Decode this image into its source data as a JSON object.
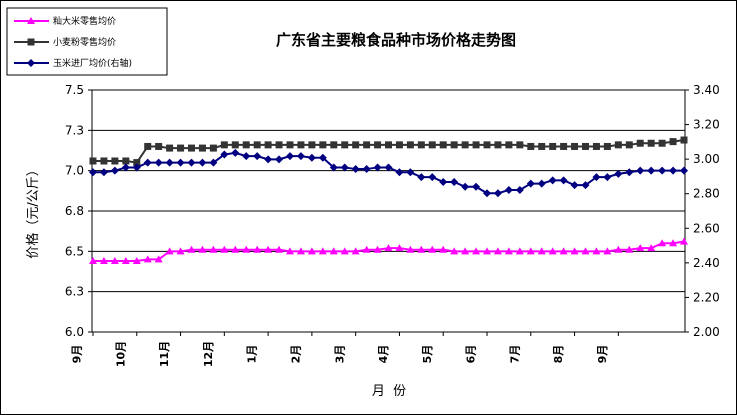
{
  "chart_data": {
    "type": "line",
    "title": "广东省主要粮食品种市场价格走势图",
    "xlabel": "月  份",
    "ylabel": "价格（元/公斤）",
    "ylim": [
      6.0,
      7.5
    ],
    "y_ticks": [
      "6.0",
      "6.3",
      "6.5",
      "6.8",
      "7.0",
      "7.3",
      "7.5"
    ],
    "y2lim": [
      2.0,
      3.5
    ],
    "y2_ticks": [
      "2.00",
      "2.20",
      "2.40",
      "2.60",
      "2.80",
      "3.00",
      "3.20",
      "3.40"
    ],
    "grid": "horizontal major (left axis)",
    "legend_position": "top-left",
    "month_labels": [
      "9月",
      "10月",
      "11月",
      "12月",
      "1月",
      "2月",
      "3月",
      "4月",
      "5月",
      "6月",
      "7月",
      "8月",
      "9月"
    ],
    "points_per_month": 4,
    "series": [
      {
        "name": "籼大米零售均价",
        "axis": "left",
        "color": "#ff00ff",
        "marker": "triangle",
        "values": [
          6.44,
          6.44,
          6.44,
          6.44,
          6.44,
          6.45,
          6.45,
          6.5,
          6.5,
          6.51,
          6.51,
          6.51,
          6.51,
          6.51,
          6.51,
          6.51,
          6.51,
          6.51,
          6.5,
          6.5,
          6.5,
          6.5,
          6.5,
          6.5,
          6.5,
          6.51,
          6.51,
          6.52,
          6.52,
          6.51,
          6.51,
          6.51,
          6.51,
          6.5,
          6.5,
          6.5,
          6.5,
          6.5,
          6.5,
          6.5,
          6.5,
          6.5,
          6.5,
          6.5,
          6.5,
          6.5,
          6.5,
          6.5,
          6.51,
          6.51,
          6.52,
          6.52,
          6.55,
          6.55,
          6.56
        ]
      },
      {
        "name": "小麦粉零售均价",
        "axis": "left",
        "color": "#333333",
        "marker": "square",
        "values": [
          7.06,
          7.06,
          7.06,
          7.06,
          7.05,
          7.15,
          7.15,
          7.14,
          7.14,
          7.14,
          7.14,
          7.14,
          7.16,
          7.16,
          7.16,
          7.16,
          7.16,
          7.16,
          7.16,
          7.16,
          7.16,
          7.16,
          7.16,
          7.16,
          7.16,
          7.16,
          7.16,
          7.16,
          7.16,
          7.16,
          7.16,
          7.16,
          7.16,
          7.16,
          7.16,
          7.16,
          7.16,
          7.16,
          7.16,
          7.16,
          7.15,
          7.15,
          7.15,
          7.15,
          7.15,
          7.15,
          7.15,
          7.15,
          7.16,
          7.16,
          7.17,
          7.17,
          7.17,
          7.18,
          7.19
        ]
      },
      {
        "name": "玉米进厂均价(右轴)",
        "axis": "right",
        "color": "#000080",
        "marker": "diamond",
        "values": [
          2.99,
          2.99,
          3.0,
          3.02,
          3.02,
          3.05,
          3.05,
          3.05,
          3.05,
          3.05,
          3.05,
          3.05,
          3.1,
          3.11,
          3.09,
          3.09,
          3.07,
          3.07,
          3.09,
          3.09,
          3.08,
          3.08,
          3.02,
          3.02,
          3.01,
          3.01,
          3.02,
          3.02,
          2.99,
          2.99,
          2.96,
          2.96,
          2.93,
          2.93,
          2.9,
          2.9,
          2.86,
          2.86,
          2.88,
          2.88,
          2.92,
          2.92,
          2.94,
          2.94,
          2.91,
          2.91,
          2.96,
          2.96,
          2.98,
          2.99,
          3.0,
          3.0,
          3.0,
          3.0,
          3.0
        ]
      }
    ]
  }
}
